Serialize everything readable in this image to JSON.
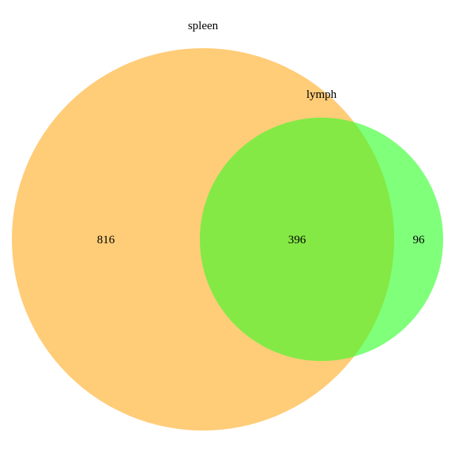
{
  "venn": {
    "sets": [
      {
        "name": "spleen",
        "color": "#FFCC78"
      },
      {
        "name": "lymph",
        "color": "#7FFF7A"
      }
    ],
    "overlap_color": "#84E944",
    "regions": {
      "spleen_only": "816",
      "both": "396",
      "lymph_only": "96"
    }
  }
}
